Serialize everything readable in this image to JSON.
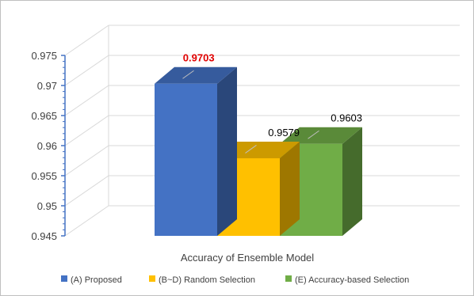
{
  "chart_data": {
    "type": "bar",
    "style": "3d-clustered-column",
    "title": "",
    "xlabel": "Accuracy of Ensemble Model",
    "ylabel": "",
    "ylim": [
      0.945,
      0.975
    ],
    "ytick_values": [
      0.945,
      0.95,
      0.955,
      0.96,
      0.965,
      0.97,
      0.975
    ],
    "ytick_labels": [
      "0.945",
      "0.95",
      "0.955",
      "0.96",
      "0.965",
      "0.97",
      "0.975"
    ],
    "grid": true,
    "legend_position": "bottom",
    "categories": [
      "Accuracy of Ensemble Model"
    ],
    "series": [
      {
        "name": "(A) Proposed",
        "values": [
          0.9703
        ],
        "label": "0.9703",
        "color": "#4472c4",
        "highlight": true
      },
      {
        "name": "(B~D) Random Selection",
        "values": [
          0.9579
        ],
        "label": "0.9579",
        "color": "#ffc000",
        "highlight": false
      },
      {
        "name": "(E) Accuracy-based Selection",
        "values": [
          0.9603
        ],
        "label": "0.9603",
        "color": "#70ad47",
        "highlight": false
      }
    ],
    "colors": {
      "axis": "#4472c4",
      "grid": "#d9d9d9",
      "highlight_label": "#e00000"
    }
  }
}
